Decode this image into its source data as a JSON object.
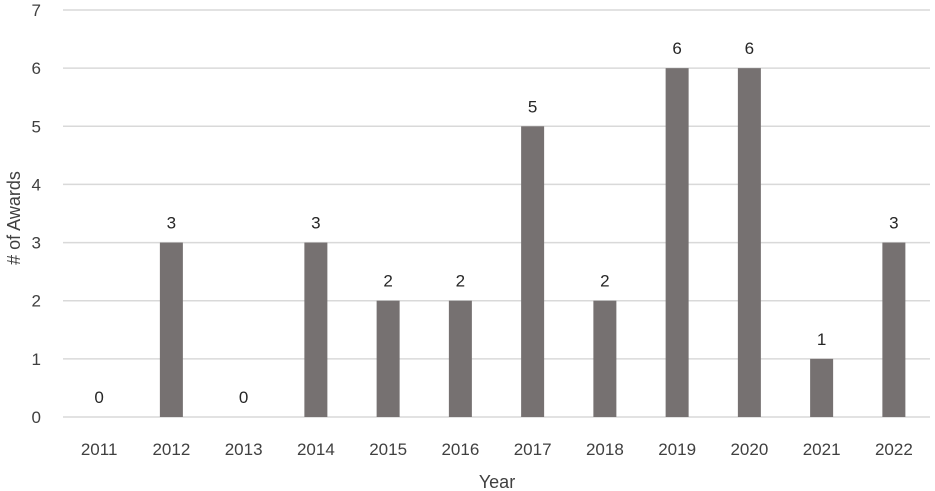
{
  "chart_data": {
    "type": "bar",
    "title": "",
    "xlabel": "Year",
    "ylabel": "# of Awards",
    "categories": [
      "2011",
      "2012",
      "2013",
      "2014",
      "2015",
      "2016",
      "2017",
      "2018",
      "2019",
      "2020",
      "2021",
      "2022"
    ],
    "values": [
      0,
      3,
      0,
      3,
      2,
      2,
      5,
      2,
      6,
      6,
      1,
      3
    ],
    "ylim": [
      0,
      7
    ],
    "yticks": [
      "0",
      "1",
      "2",
      "3",
      "4",
      "5",
      "6",
      "7"
    ],
    "grid": true,
    "legend": "none",
    "colors": {
      "bar": "#767171",
      "grid": "#d9d9d9"
    }
  }
}
